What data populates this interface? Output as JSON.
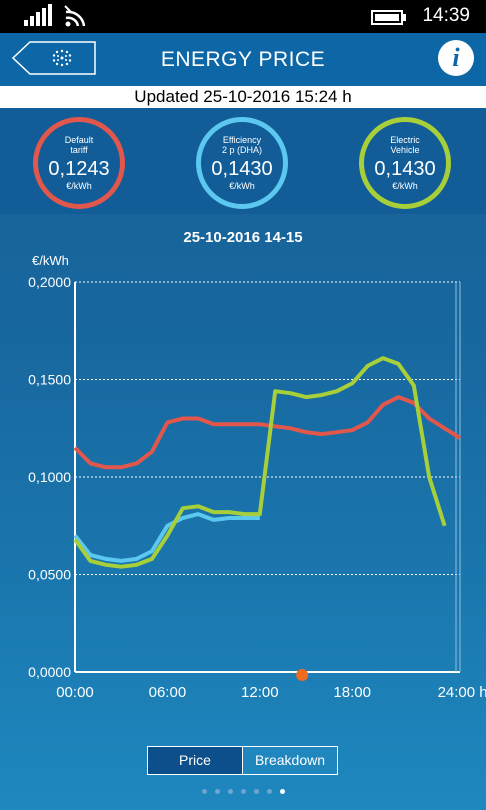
{
  "status_bar": {
    "time": "14:39"
  },
  "header": {
    "title": "ENERGY PRICE",
    "info_label": "i"
  },
  "updated": "Updated 25-10-2016 15:24 h",
  "tariffs": [
    {
      "label1": "Default",
      "label2": "tariff",
      "value": "0,1243",
      "unit": "€/kWh",
      "color": "#e2574c"
    },
    {
      "label1": "Efficiency",
      "label2": "2 p (DHA)",
      "value": "0,1430",
      "unit": "€/kWh",
      "color": "#5cc8f0"
    },
    {
      "label1": "Electric",
      "label2": "Vehicle",
      "value": "0,1430",
      "unit": "€/kWh",
      "color": "#a6cf3a"
    }
  ],
  "chart_title": "25-10-2016 14-15",
  "chart_data": {
    "type": "line",
    "ylabel": "€/kWh",
    "xlabel": "",
    "ylim": [
      0,
      0.2
    ],
    "xlim": [
      0,
      25
    ],
    "y_ticks": [
      "0,2000",
      "0,1500",
      "0,1000",
      "0,0500",
      "0,0000"
    ],
    "x_ticks": [
      "00:00",
      "06:00",
      "12:00",
      "18:00",
      "24:00 h"
    ],
    "grid": true,
    "current_hour": 14.75,
    "x": [
      0,
      1,
      2,
      3,
      4,
      5,
      6,
      7,
      8,
      9,
      10,
      11,
      12,
      13,
      14,
      15,
      16,
      17,
      18,
      19,
      20,
      21,
      22,
      23,
      24,
      25
    ],
    "series": [
      {
        "color": "#5cc8f0",
        "values": [
          0.07,
          0.06,
          0.058,
          0.057,
          0.058,
          0.062,
          0.075,
          0.079,
          0.081,
          0.078,
          0.079,
          0.079,
          0.079,
          null,
          null,
          null,
          null,
          null,
          null,
          null,
          null,
          null,
          null,
          null,
          null,
          null
        ]
      },
      {
        "color": "#e2574c",
        "values": [
          0.115,
          0.107,
          0.105,
          0.105,
          0.107,
          0.113,
          0.128,
          0.13,
          0.13,
          0.127,
          0.127,
          0.127,
          0.127,
          0.126,
          0.125,
          0.123,
          0.122,
          0.123,
          0.124,
          0.128,
          0.137,
          0.141,
          0.138,
          0.13,
          0.125,
          0.12
        ]
      },
      {
        "color": "#a6cf3a",
        "values": [
          0.068,
          0.057,
          0.055,
          0.054,
          0.055,
          0.058,
          0.07,
          0.084,
          0.085,
          0.082,
          0.082,
          0.081,
          0.081,
          0.144,
          0.143,
          0.141,
          0.142,
          0.144,
          0.148,
          0.157,
          0.161,
          0.158,
          0.147,
          0.1,
          0.075,
          null
        ]
      }
    ]
  },
  "tabs": {
    "price": "Price",
    "breakdown": "Breakdown"
  },
  "pager": {
    "count": 7,
    "active": 6
  }
}
